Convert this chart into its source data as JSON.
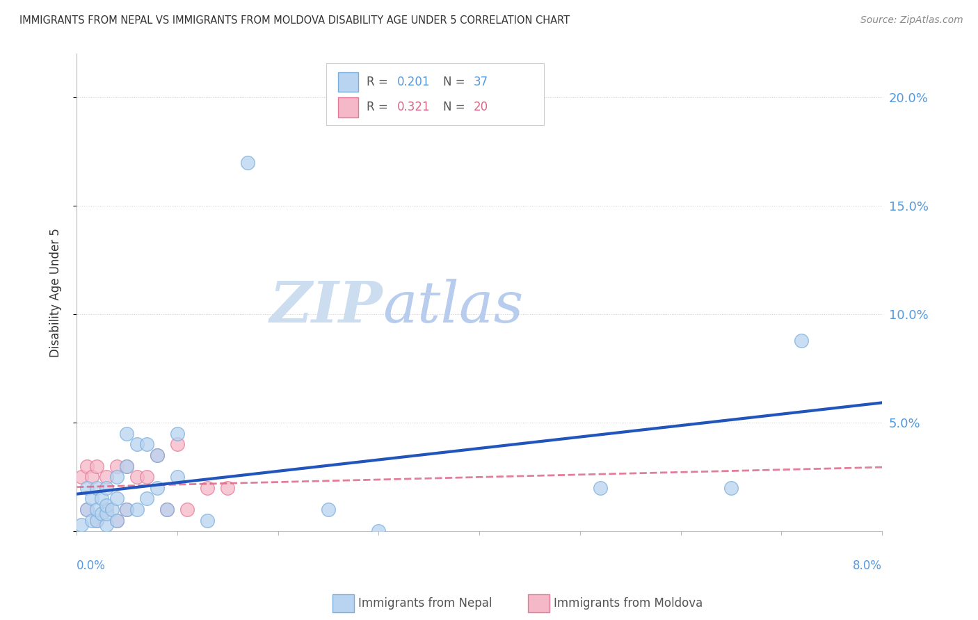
{
  "title": "IMMIGRANTS FROM NEPAL VS IMMIGRANTS FROM MOLDOVA DISABILITY AGE UNDER 5 CORRELATION CHART",
  "source": "Source: ZipAtlas.com",
  "ylabel": "Disability Age Under 5",
  "xlim": [
    0.0,
    0.08
  ],
  "ylim": [
    0.0,
    0.22
  ],
  "yticks": [
    0.0,
    0.05,
    0.1,
    0.15,
    0.2
  ],
  "ytick_labels": [
    "",
    "5.0%",
    "10.0%",
    "15.0%",
    "20.0%"
  ],
  "nepal_color": "#b8d4f0",
  "nepal_edge_color": "#7aaedd",
  "moldova_color": "#f5b8c8",
  "moldova_edge_color": "#e87898",
  "trend_nepal_color": "#2255bb",
  "trend_moldova_color": "#dd6688",
  "legend_R_nepal": "R = 0.201",
  "legend_N_nepal": "N = 37",
  "legend_R_moldova": "R = 0.321",
  "legend_N_moldova": "N = 20",
  "nepal_x": [
    0.0005,
    0.001,
    0.001,
    0.0015,
    0.0015,
    0.002,
    0.002,
    0.002,
    0.0025,
    0.0025,
    0.003,
    0.003,
    0.003,
    0.003,
    0.0035,
    0.004,
    0.004,
    0.004,
    0.005,
    0.005,
    0.005,
    0.006,
    0.006,
    0.007,
    0.007,
    0.008,
    0.008,
    0.009,
    0.01,
    0.01,
    0.013,
    0.017,
    0.025,
    0.03,
    0.052,
    0.065,
    0.072
  ],
  "nepal_y": [
    0.003,
    0.01,
    0.02,
    0.005,
    0.015,
    0.005,
    0.01,
    0.02,
    0.008,
    0.015,
    0.003,
    0.008,
    0.012,
    0.02,
    0.01,
    0.005,
    0.015,
    0.025,
    0.01,
    0.03,
    0.045,
    0.01,
    0.04,
    0.015,
    0.04,
    0.02,
    0.035,
    0.01,
    0.025,
    0.045,
    0.005,
    0.17,
    0.01,
    0.0,
    0.02,
    0.02,
    0.088
  ],
  "moldova_x": [
    0.0005,
    0.001,
    0.001,
    0.0015,
    0.002,
    0.002,
    0.003,
    0.003,
    0.004,
    0.004,
    0.005,
    0.005,
    0.006,
    0.007,
    0.008,
    0.009,
    0.01,
    0.011,
    0.013,
    0.015
  ],
  "moldova_y": [
    0.025,
    0.03,
    0.01,
    0.025,
    0.005,
    0.03,
    0.025,
    0.01,
    0.005,
    0.03,
    0.01,
    0.03,
    0.025,
    0.025,
    0.035,
    0.01,
    0.04,
    0.01,
    0.02,
    0.02
  ],
  "background_color": "#ffffff",
  "grid_color": "#cccccc",
  "axis_color": "#bbbbbb",
  "title_color": "#333333",
  "right_tick_color": "#5599dd",
  "watermark_zip_color": "#dde8f5",
  "watermark_atlas_color": "#c8ddf0",
  "marker_size": 200
}
